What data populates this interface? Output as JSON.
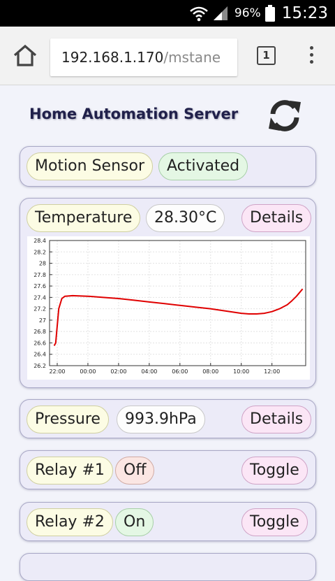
{
  "status_bar": {
    "battery": "96%",
    "time": "15:23"
  },
  "browser": {
    "url_host": "192.168.1.170",
    "url_path": "/mstane",
    "tab_count": "1"
  },
  "page": {
    "title": "Home Automation Server"
  },
  "motion": {
    "label": "Motion Sensor",
    "status": "Activated"
  },
  "temperature": {
    "label": "Temperature",
    "value": "28.30°C",
    "details": "Details"
  },
  "pressure": {
    "label": "Pressure",
    "value": "993.9hPa",
    "details": "Details"
  },
  "relay1": {
    "label": "Relay #1",
    "state": "Off",
    "toggle": "Toggle"
  },
  "relay2": {
    "label": "Relay #2",
    "state": "On",
    "toggle": "Toggle"
  },
  "colors": {
    "series": "#e00000",
    "page_title": "#20204a"
  },
  "chart_data": {
    "type": "line",
    "title": "",
    "xlabel": "",
    "ylabel": "",
    "ylim": [
      26.2,
      28.4
    ],
    "yticks": [
      "26.2",
      "26.4",
      "26.6",
      "26.8",
      "27",
      "27.2",
      "27.4",
      "27.6",
      "27.8",
      "28",
      "28.2",
      "28.4"
    ],
    "xticks": [
      "22:00",
      "00:00",
      "02:00",
      "04:00",
      "06:00",
      "08:00",
      "10:00",
      "12:00"
    ],
    "grid": true,
    "series": [
      {
        "x": [
          -0.2,
          -0.1,
          0.0,
          0.1,
          0.3,
          0.5,
          1.0,
          2.0,
          3.0,
          4.0,
          5.0,
          6.0,
          7.0,
          8.0,
          9.0,
          10.0,
          10.5,
          11.0,
          11.5,
          12.0,
          12.5,
          13.0,
          13.5,
          14.0,
          14.5,
          15.0,
          15.3,
          15.6,
          15.85,
          16.0
        ],
        "values": [
          26.55,
          26.6,
          26.9,
          27.2,
          27.38,
          27.42,
          27.43,
          27.42,
          27.4,
          27.38,
          27.35,
          27.32,
          27.29,
          27.26,
          27.23,
          27.2,
          27.18,
          27.16,
          27.14,
          27.12,
          27.11,
          27.11,
          27.12,
          27.15,
          27.2,
          27.27,
          27.34,
          27.42,
          27.5,
          27.55
        ]
      }
    ]
  }
}
